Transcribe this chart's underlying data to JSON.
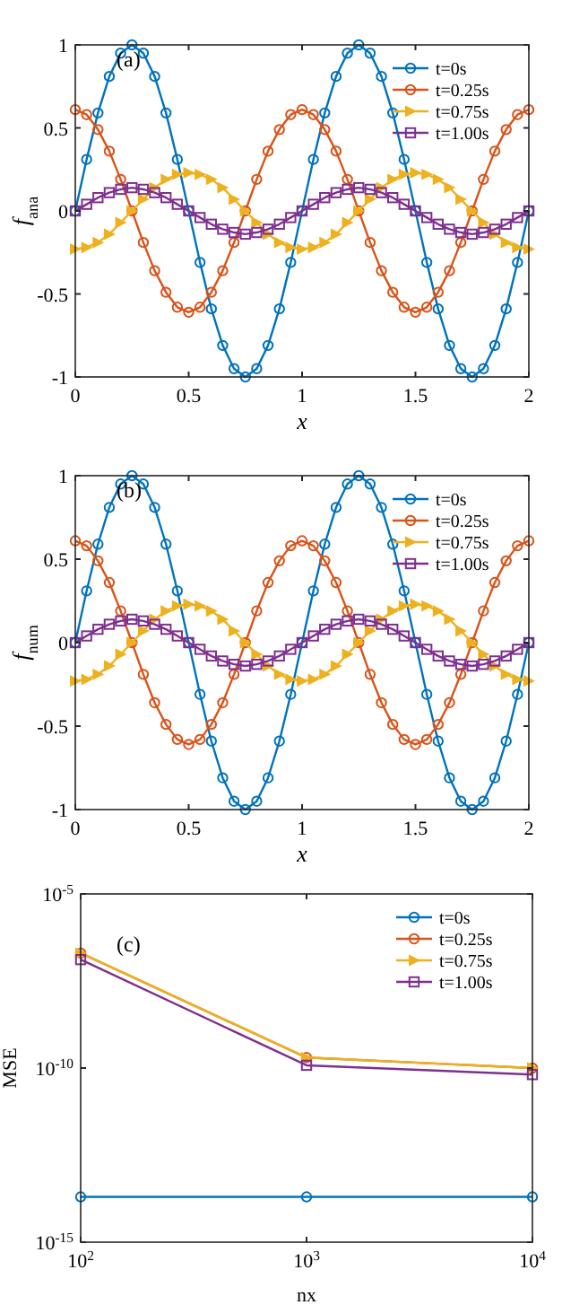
{
  "chart_data": [
    {
      "type": "line",
      "xlabel": "x",
      "ylabel": "f$_{ana}$",
      "annotations": [
        "(a)"
      ],
      "xlim": [
        0,
        2
      ],
      "ylim": [
        -1,
        1
      ],
      "xticks": [
        0,
        0.5,
        1,
        1.5,
        2
      ],
      "yticks": [
        -1,
        -0.5,
        0,
        0.5,
        1
      ],
      "legend": "top right",
      "grid": false,
      "line_style": "solid",
      "x": [
        0,
        0.05,
        0.1,
        0.15,
        0.2,
        0.25,
        0.3,
        0.35,
        0.4,
        0.45,
        0.5,
        0.55,
        0.6,
        0.65,
        0.7,
        0.75,
        0.8,
        0.85,
        0.9,
        0.95,
        1,
        1.05,
        1.1,
        1.15,
        1.2,
        1.25,
        1.3,
        1.35,
        1.4,
        1.45,
        1.5,
        1.55,
        1.6,
        1.65,
        1.7,
        1.75,
        1.8,
        1.85,
        1.9,
        1.95,
        2
      ],
      "series": [
        {
          "name": "t=0s",
          "color": "#0072bd",
          "marker": "circle",
          "values": [
            0,
            0.31,
            0.59,
            0.81,
            0.95,
            1,
            0.95,
            0.81,
            0.59,
            0.31,
            0,
            -0.31,
            -0.59,
            -0.81,
            -0.95,
            -1,
            -0.95,
            -0.81,
            -0.59,
            -0.31,
            0,
            0.31,
            0.59,
            0.81,
            0.95,
            1,
            0.95,
            0.81,
            0.59,
            0.31,
            0,
            -0.31,
            -0.59,
            -0.81,
            -0.95,
            -1,
            -0.95,
            -0.81,
            -0.59,
            -0.31,
            0
          ]
        },
        {
          "name": "t=0.25s",
          "color": "#d95319",
          "marker": "circle",
          "values": [
            0.61,
            0.58,
            0.49,
            0.36,
            0.19,
            0,
            -0.19,
            -0.36,
            -0.49,
            -0.58,
            -0.61,
            -0.58,
            -0.49,
            -0.36,
            -0.19,
            0,
            0.19,
            0.36,
            0.49,
            0.58,
            0.61,
            0.58,
            0.49,
            0.36,
            0.19,
            0,
            -0.19,
            -0.36,
            -0.49,
            -0.58,
            -0.61,
            -0.58,
            -0.49,
            -0.36,
            -0.19,
            0,
            0.19,
            0.36,
            0.49,
            0.58,
            0.61
          ]
        },
        {
          "name": "t=0.75s",
          "color": "#edb120",
          "marker": "triangle",
          "values": [
            -0.23,
            -0.22,
            -0.19,
            -0.14,
            -0.07,
            0,
            0.07,
            0.14,
            0.19,
            0.22,
            0.23,
            0.22,
            0.19,
            0.14,
            0.07,
            0,
            -0.07,
            -0.14,
            -0.19,
            -0.22,
            -0.23,
            -0.22,
            -0.19,
            -0.14,
            -0.07,
            0,
            0.07,
            0.14,
            0.19,
            0.22,
            0.23,
            0.22,
            0.19,
            0.14,
            0.07,
            0,
            -0.07,
            -0.14,
            -0.19,
            -0.22,
            -0.23
          ]
        },
        {
          "name": "t=1.00s",
          "color": "#7e2f8e",
          "marker": "square",
          "values": [
            0,
            0.04,
            0.08,
            0.11,
            0.13,
            0.14,
            0.13,
            0.11,
            0.08,
            0.04,
            0,
            -0.04,
            -0.08,
            -0.11,
            -0.13,
            -0.14,
            -0.13,
            -0.11,
            -0.08,
            -0.04,
            0,
            0.04,
            0.08,
            0.11,
            0.13,
            0.14,
            0.13,
            0.11,
            0.08,
            0.04,
            0,
            -0.04,
            -0.08,
            -0.11,
            -0.13,
            -0.14,
            -0.13,
            -0.11,
            -0.08,
            -0.04,
            0
          ]
        }
      ]
    },
    {
      "type": "line",
      "xlabel": "x",
      "ylabel": "f$_{num}$",
      "annotations": [
        "(b)"
      ],
      "xlim": [
        0,
        2
      ],
      "ylim": [
        -1,
        1
      ],
      "xticks": [
        0,
        0.5,
        1,
        1.5,
        2
      ],
      "yticks": [
        -1,
        -0.5,
        0,
        0.5,
        1
      ],
      "legend": "top right",
      "grid": false,
      "line_style": "solid",
      "x": [
        0,
        0.05,
        0.1,
        0.15,
        0.2,
        0.25,
        0.3,
        0.35,
        0.4,
        0.45,
        0.5,
        0.55,
        0.6,
        0.65,
        0.7,
        0.75,
        0.8,
        0.85,
        0.9,
        0.95,
        1,
        1.05,
        1.1,
        1.15,
        1.2,
        1.25,
        1.3,
        1.35,
        1.4,
        1.45,
        1.5,
        1.55,
        1.6,
        1.65,
        1.7,
        1.75,
        1.8,
        1.85,
        1.9,
        1.95,
        2
      ],
      "series": [
        {
          "name": "t=0s",
          "color": "#0072bd",
          "marker": "circle",
          "values": [
            0,
            0.31,
            0.59,
            0.81,
            0.95,
            1,
            0.95,
            0.81,
            0.59,
            0.31,
            0,
            -0.31,
            -0.59,
            -0.81,
            -0.95,
            -1,
            -0.95,
            -0.81,
            -0.59,
            -0.31,
            0,
            0.31,
            0.59,
            0.81,
            0.95,
            1,
            0.95,
            0.81,
            0.59,
            0.31,
            0,
            -0.31,
            -0.59,
            -0.81,
            -0.95,
            -1,
            -0.95,
            -0.81,
            -0.59,
            -0.31,
            0
          ]
        },
        {
          "name": "t=0.25s",
          "color": "#d95319",
          "marker": "circle",
          "values": [
            0.61,
            0.58,
            0.49,
            0.36,
            0.19,
            0,
            -0.19,
            -0.36,
            -0.49,
            -0.58,
            -0.61,
            -0.58,
            -0.49,
            -0.36,
            -0.19,
            0,
            0.19,
            0.36,
            0.49,
            0.58,
            0.61,
            0.58,
            0.49,
            0.36,
            0.19,
            0,
            -0.19,
            -0.36,
            -0.49,
            -0.58,
            -0.61,
            -0.58,
            -0.49,
            -0.36,
            -0.19,
            0,
            0.19,
            0.36,
            0.49,
            0.58,
            0.61
          ]
        },
        {
          "name": "t=0.75s",
          "color": "#edb120",
          "marker": "triangle",
          "values": [
            -0.23,
            -0.22,
            -0.19,
            -0.14,
            -0.07,
            0,
            0.07,
            0.14,
            0.19,
            0.22,
            0.23,
            0.22,
            0.19,
            0.14,
            0.07,
            0,
            -0.07,
            -0.14,
            -0.19,
            -0.22,
            -0.23,
            -0.22,
            -0.19,
            -0.14,
            -0.07,
            0,
            0.07,
            0.14,
            0.19,
            0.22,
            0.23,
            0.22,
            0.19,
            0.14,
            0.07,
            0,
            -0.07,
            -0.14,
            -0.19,
            -0.22,
            -0.23
          ]
        },
        {
          "name": "t=1.00s",
          "color": "#7e2f8e",
          "marker": "square",
          "values": [
            0,
            0.04,
            0.08,
            0.11,
            0.13,
            0.14,
            0.13,
            0.11,
            0.08,
            0.04,
            0,
            -0.04,
            -0.08,
            -0.11,
            -0.13,
            -0.14,
            -0.13,
            -0.11,
            -0.08,
            -0.04,
            0,
            0.04,
            0.08,
            0.11,
            0.13,
            0.14,
            0.13,
            0.11,
            0.08,
            0.04,
            0,
            -0.04,
            -0.08,
            -0.11,
            -0.13,
            -0.14,
            -0.13,
            -0.11,
            -0.08,
            -0.04,
            0
          ]
        }
      ]
    },
    {
      "type": "line",
      "xlabel": "nx",
      "ylabel": "MSE",
      "annotations": [
        "(c)"
      ],
      "log": "xy",
      "xlim": [
        100,
        10000
      ],
      "ylim": [
        1e-15,
        1e-05
      ],
      "xticks": [
        {
          "value": 100,
          "label": "10$^{2}$"
        },
        {
          "value": 1000,
          "label": "10$^{3}$"
        },
        {
          "value": 10000,
          "label": "10$^{4}$"
        }
      ],
      "yticks": [
        {
          "value": 1e-15,
          "label": "10$^{-15}$"
        },
        {
          "value": 1e-10,
          "label": "10$^{-10}$"
        },
        {
          "value": 1e-05,
          "label": "10$^{-5}$"
        }
      ],
      "legend": "top right",
      "grid": false,
      "line_style": "solid",
      "x": [
        100,
        1000,
        10000
      ],
      "series": [
        {
          "name": "t=0s",
          "color": "#0072bd",
          "marker": "circle",
          "values": [
            2e-14,
            2e-14,
            2e-14
          ]
        },
        {
          "name": "t=0.25s",
          "color": "#d95319",
          "marker": "circle",
          "values": [
            2e-07,
            2e-10,
            1e-10
          ]
        },
        {
          "name": "t=0.75s",
          "color": "#edb120",
          "marker": "triangle",
          "values": [
            2e-07,
            2e-10,
            1e-10
          ]
        },
        {
          "name": "t=1.00s",
          "color": "#7e2f8e",
          "marker": "square",
          "values": [
            1.3e-07,
            1.2e-10,
            6.5e-11
          ]
        }
      ]
    }
  ]
}
